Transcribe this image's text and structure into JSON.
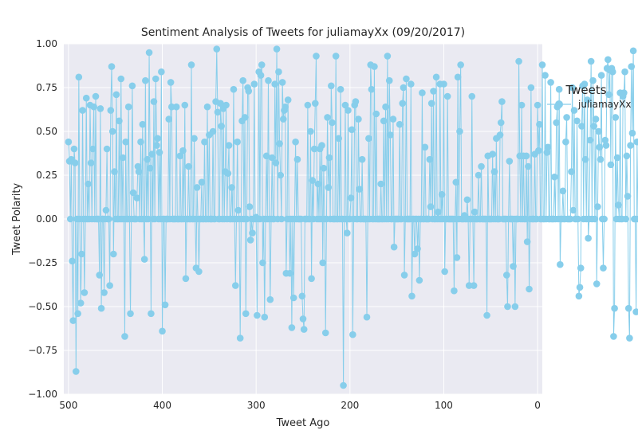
{
  "colors": {
    "plot_background": "#eaeaf2",
    "grid": "#ffffff",
    "series": "#87ceeb",
    "text": "#262626"
  },
  "chart_data": {
    "type": "line",
    "title": "Sentiment Analysis of Tweets for juliamayXx (09/20/2017)",
    "xlabel": "Tweet Ago",
    "ylabel": "Tweet Polarity",
    "xlim": [
      505,
      -5
    ],
    "ylim": [
      -1.0,
      1.0
    ],
    "x_inverted": true,
    "grid": true,
    "legend": {
      "title": "Tweets",
      "placement": "outside-right"
    },
    "xticks": [
      500,
      400,
      300,
      200,
      100,
      0
    ],
    "xtick_labels": [
      "500",
      "400",
      "300",
      "200",
      "100",
      "0"
    ],
    "yticks": [
      -1.0,
      -0.75,
      -0.5,
      -0.25,
      0.0,
      0.25,
      0.5,
      0.75,
      1.0
    ],
    "ytick_labels": [
      "−1.00",
      "−0.75",
      "−0.50",
      "−0.25",
      "0.00",
      "0.25",
      "0.50",
      "0.75",
      "1.00"
    ],
    "series": [
      {
        "name": "juliamayXx",
        "marker": "circle",
        "x_start": 500,
        "x_step": -1,
        "values": [
          0.44,
          0.33,
          0,
          0.34,
          -0.24,
          -0.58,
          0.4,
          0.32,
          -0.87,
          0,
          -0.54,
          0.81,
          0,
          -0.48,
          -0.2,
          0.62,
          0,
          -0.42,
          0,
          0.69,
          0,
          0.2,
          0,
          0.65,
          0.32,
          0,
          0.4,
          0.64,
          0,
          0.7,
          0,
          0,
          0,
          -0.32,
          0.63,
          -0.51,
          0,
          0,
          -0.42,
          0,
          0.05,
          0.4,
          0,
          0,
          -0.38,
          0.62,
          0.87,
          0.5,
          -0.2,
          0.27,
          0,
          0.71,
          0,
          0,
          0.56,
          0,
          0.8,
          0,
          0.35,
          0,
          -0.67,
          0.44,
          0,
          0,
          0.64,
          0,
          -0.54,
          0,
          0.76,
          0.15,
          0,
          0,
          0,
          0.12,
          0.3,
          0.27,
          0,
          0.44,
          0,
          0.54,
          0,
          -0.23,
          0.79,
          0,
          0.34,
          0,
          0.95,
          0.29,
          -0.54,
          0.37,
          0,
          0.67,
          0,
          0.8,
          0.42,
          0.46,
          0,
          0.38,
          0,
          0.84,
          -0.64,
          0,
          0,
          -0.49,
          0,
          0,
          0,
          0.57,
          0,
          0.78,
          0.64,
          0,
          0,
          0,
          0,
          0.64,
          0,
          0,
          0,
          0.36,
          0,
          0,
          0.39,
          0,
          0.65,
          -0.34,
          0,
          0,
          0.3,
          0,
          0,
          0.88,
          0,
          0,
          0.46,
          0,
          -0.28,
          0.18,
          0,
          -0.3,
          0,
          0,
          0.21,
          0,
          0,
          0.44,
          0,
          0,
          0.64,
          0,
          0.48,
          0,
          0,
          0,
          0.5,
          0,
          0,
          0.67,
          0.97,
          0.61,
          0,
          0,
          0.66,
          0.53,
          0,
          0.63,
          0,
          0.27,
          0.65,
          0,
          0.26,
          0.42,
          0,
          0,
          0.18,
          0,
          0.74,
          0,
          -0.38,
          0,
          0.44,
          0.05,
          0,
          -0.68,
          0,
          0.56,
          0.79,
          0,
          0.58,
          -0.54,
          0,
          0.75,
          0.73,
          0.07,
          -0.12,
          0,
          -0.08,
          0,
          0.77,
          0,
          0.01,
          -0.55,
          0,
          0.84,
          0,
          0.82,
          0.88,
          -0.25,
          0,
          -0.56,
          0,
          0.36,
          0,
          0.79,
          0,
          -0.46,
          0,
          0.35,
          0,
          0,
          0.77,
          0.32,
          0.97,
          0,
          0.84,
          0.43,
          0.25,
          0,
          0.78,
          0.57,
          0.62,
          0.64,
          -0.31,
          0,
          0.68,
          0,
          -0.31,
          0,
          -0.62,
          0,
          -0.45,
          0,
          0.44,
          0,
          0.34,
          0,
          0,
          0,
          0,
          -0.44,
          -0.57,
          -0.63,
          0,
          0,
          0,
          0.65,
          0,
          0,
          0.5,
          -0.34,
          0.22,
          0,
          0.4,
          0.66,
          0.93,
          0,
          0.2,
          0,
          0.4,
          0,
          0.42,
          -0.25,
          0.29,
          0,
          -0.65,
          0,
          0.58,
          0.18,
          0.35,
          0,
          0.76,
          0.55,
          0,
          0,
          0,
          0.93,
          0,
          0,
          0.46,
          0,
          0.74,
          0,
          0,
          -0.95,
          0,
          0.65,
          0,
          -0.08,
          0.62,
          0,
          0,
          0.12,
          0.51,
          -0.66,
          0,
          0.65,
          0.67,
          0,
          0,
          0.57,
          0.17,
          0,
          0,
          0.34,
          0,
          0,
          0,
          0,
          -0.56,
          0,
          0.46,
          0,
          0.88,
          0.74,
          0,
          0,
          0.87,
          0,
          0.6,
          0,
          0,
          0,
          0,
          0.2,
          0,
          0,
          0.56,
          0,
          0.64,
          0,
          0.93,
          0,
          0.79,
          0.48,
          0,
          0,
          0.57,
          -0.16,
          0,
          0,
          0,
          0,
          0,
          0.54,
          0,
          0,
          0.66,
          0.75,
          -0.32,
          0,
          0.8,
          0,
          0,
          0,
          0,
          0.77,
          -0.44,
          0,
          0,
          -0.2,
          0,
          0,
          -0.17,
          0,
          -0.35,
          0,
          0,
          0.72,
          0,
          0,
          0.41,
          0,
          0,
          0,
          0,
          0.34,
          0.07,
          0.66,
          0,
          0.73,
          0,
          0,
          0.81,
          0,
          0.04,
          0,
          0.77,
          0,
          0.14,
          0,
          0.77,
          -0.3,
          0,
          0,
          0.7,
          0,
          0,
          0,
          0,
          0,
          0,
          -0.41,
          0,
          0.21,
          -0.22,
          0.81,
          0,
          0.5,
          0.88,
          0,
          0,
          0,
          0.02,
          0,
          0,
          0.11,
          0,
          -0.38,
          0,
          0,
          0.7,
          0,
          -0.38,
          0.04,
          0,
          0,
          0,
          0.25,
          0,
          0,
          0.3,
          0,
          0,
          0,
          0,
          0,
          -0.55,
          0.36,
          0,
          0,
          0,
          0,
          0.37,
          0,
          0.27,
          0,
          0.46,
          0,
          0,
          0,
          0.48,
          0.55,
          0.67,
          0,
          0,
          0,
          0,
          -0.32,
          -0.5,
          0,
          0.33,
          0,
          0,
          0,
          -0.27,
          0,
          -0.5,
          0,
          0,
          0,
          0.9,
          0.36,
          0,
          0.65,
          0,
          0.36,
          0,
          0,
          0.36,
          -0.13,
          0.3,
          -0.4,
          0,
          0.75,
          0,
          0,
          0,
          0.37,
          0,
          0,
          0.65,
          0.39,
          0.54,
          0,
          0,
          0.88,
          0,
          0,
          0.82,
          0,
          0.38,
          0.41,
          0,
          0,
          0.78,
          0,
          0,
          0,
          0.24,
          0,
          0.55,
          0.64,
          0,
          0.74,
          -0.26,
          0,
          0,
          0.16,
          0,
          0,
          0.44,
          0.58,
          0,
          0,
          0,
          0,
          0.27,
          0.75,
          0.05,
          0.62,
          0,
          0,
          0.56,
          0,
          -0.44,
          -0.39,
          -0.28,
          0.53,
          0.76,
          0,
          0.77,
          0.34,
          0,
          0.68,
          -0.11,
          0,
          0.45,
          0.9,
          0,
          0.79,
          0.53,
          0,
          0.57,
          -0.37,
          0.07,
          0.5,
          0.41,
          0.34,
          0.82,
          0,
          -0.28,
          0,
          0.45,
          0.42,
          0.86,
          0.91,
          0.71,
          0.85,
          0.31,
          0.86,
          0.84,
          -0.67,
          -0.51,
          0.58,
          0,
          0.35,
          0.08,
          0,
          0.72,
          0,
          0,
          0.7,
          0.72,
          0.84,
          0,
          0.36,
          0.13,
          -0.51,
          -0.68,
          0.42,
          0.87,
          0.49,
          0.96,
          0,
          0,
          -0.53,
          0.44,
          0
        ]
      }
    ]
  }
}
